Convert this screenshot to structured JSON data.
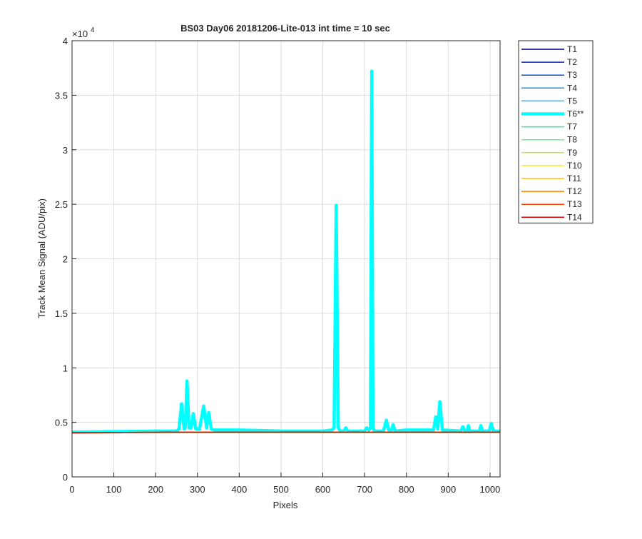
{
  "chart_data": {
    "type": "line",
    "title": "BS03 Day06 20181206-Lite-013 int time = 10 sec",
    "x_label": "Pixels",
    "y_label": "Track Mean Signal (ADU/pix)",
    "y_multiplier": {
      "base": "×10",
      "exponent": "4"
    },
    "xlim": [
      0,
      1024
    ],
    "ylim": [
      0,
      4
    ],
    "xticks": [
      0,
      100,
      200,
      300,
      400,
      500,
      600,
      700,
      800,
      900,
      1000
    ],
    "yticks": [
      0,
      0.5,
      1,
      1.5,
      2,
      2.5,
      3,
      3.5,
      4
    ],
    "grid": true,
    "legend": "outside-right",
    "series": [
      {
        "name": "T1",
        "color": "#00008f",
        "width": 1.5,
        "x": [
          0,
          250,
          600,
          1024
        ],
        "values": [
          0.405,
          0.41,
          0.41,
          0.41
        ]
      },
      {
        "name": "T2",
        "color": "#0020c0",
        "width": 1.5,
        "x": [
          0,
          250,
          600,
          1024
        ],
        "values": [
          0.405,
          0.41,
          0.41,
          0.41
        ]
      },
      {
        "name": "T3",
        "color": "#0050d8",
        "width": 1.5,
        "x": [
          0,
          250,
          600,
          1024
        ],
        "values": [
          0.405,
          0.41,
          0.41,
          0.41
        ]
      },
      {
        "name": "T4",
        "color": "#1090e8",
        "width": 1.5,
        "x": [
          0,
          250,
          600,
          1024
        ],
        "values": [
          0.405,
          0.41,
          0.41,
          0.41
        ]
      },
      {
        "name": "T5",
        "color": "#20b8f0",
        "width": 1.5,
        "x": [
          0,
          250,
          600,
          1024
        ],
        "values": [
          0.405,
          0.41,
          0.41,
          0.41
        ]
      },
      {
        "name": "T6**",
        "color": "#00ffff",
        "width": 4.5,
        "x": [
          0,
          100,
          200,
          250,
          256,
          262,
          268,
          271,
          275,
          280,
          285,
          290,
          296,
          305,
          315,
          322,
          327,
          333,
          340,
          400,
          500,
          600,
          622,
          627,
          632,
          637,
          642,
          650,
          655,
          660,
          700,
          705,
          710,
          714,
          717,
          720,
          724,
          745,
          752,
          758,
          765,
          768,
          773,
          800,
          865,
          870,
          875,
          880,
          886,
          930,
          935,
          940,
          945,
          948,
          952,
          975,
          978,
          982,
          998,
          1003,
          1008,
          1024
        ],
        "values": [
          0.41,
          0.415,
          0.42,
          0.42,
          0.44,
          0.67,
          0.44,
          0.45,
          0.88,
          0.45,
          0.45,
          0.58,
          0.44,
          0.44,
          0.65,
          0.45,
          0.59,
          0.44,
          0.43,
          0.43,
          0.42,
          0.42,
          0.43,
          0.45,
          2.49,
          0.45,
          0.42,
          0.42,
          0.45,
          0.42,
          0.42,
          0.45,
          0.43,
          0.45,
          3.72,
          0.45,
          0.42,
          0.42,
          0.52,
          0.43,
          0.43,
          0.48,
          0.42,
          0.43,
          0.43,
          0.55,
          0.44,
          0.69,
          0.43,
          0.42,
          0.46,
          0.42,
          0.42,
          0.47,
          0.42,
          0.42,
          0.47,
          0.42,
          0.42,
          0.49,
          0.42,
          0.42
        ]
      },
      {
        "name": "T7",
        "color": "#40e0b0",
        "width": 1.5,
        "x": [
          0,
          250,
          600,
          1024
        ],
        "values": [
          0.405,
          0.41,
          0.41,
          0.41
        ]
      },
      {
        "name": "T8",
        "color": "#70f080",
        "width": 1.5,
        "x": [
          0,
          250,
          600,
          1024
        ],
        "values": [
          0.405,
          0.41,
          0.41,
          0.41
        ]
      },
      {
        "name": "T9",
        "color": "#b0f040",
        "width": 1.5,
        "x": [
          0,
          250,
          600,
          1024
        ],
        "values": [
          0.405,
          0.41,
          0.41,
          0.41
        ]
      },
      {
        "name": "T10",
        "color": "#ffee00",
        "width": 1.5,
        "x": [
          0,
          250,
          600,
          1024
        ],
        "values": [
          0.405,
          0.41,
          0.41,
          0.41
        ]
      },
      {
        "name": "T11",
        "color": "#ffc000",
        "width": 1.5,
        "x": [
          0,
          250,
          600,
          1024
        ],
        "values": [
          0.405,
          0.41,
          0.41,
          0.41
        ]
      },
      {
        "name": "T12",
        "color": "#ff8000",
        "width": 1.5,
        "x": [
          0,
          250,
          600,
          1024
        ],
        "values": [
          0.405,
          0.41,
          0.41,
          0.41
        ]
      },
      {
        "name": "T13",
        "color": "#ff4000",
        "width": 1.5,
        "x": [
          0,
          250,
          600,
          1024
        ],
        "values": [
          0.405,
          0.41,
          0.41,
          0.41
        ]
      },
      {
        "name": "T14",
        "color": "#e00000",
        "width": 1.5,
        "x": [
          0,
          250,
          600,
          1024
        ],
        "values": [
          0.405,
          0.41,
          0.41,
          0.41
        ]
      }
    ]
  }
}
